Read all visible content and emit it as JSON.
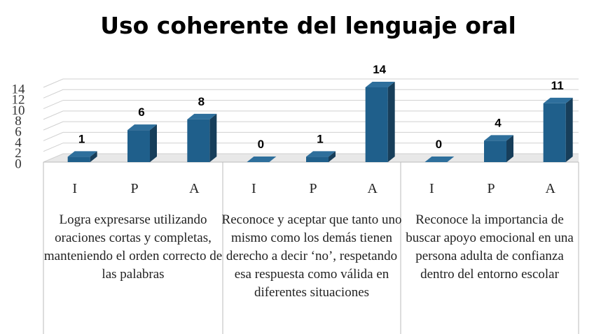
{
  "chart_data": {
    "type": "bar",
    "title": "Uso coherente del lenguaje oral",
    "groups": [
      {
        "name": "Logra expresarse utilizando oraciones cortas y completas, manteniendo el orden correcto de las palabras",
        "categories": [
          "I",
          "P",
          "A"
        ],
        "values": [
          1,
          6,
          8
        ]
      },
      {
        "name": "Reconoce y aceptar que tanto uno mismo como los demás tienen derecho a decir ‘no’, respetando esa respuesta como válida en diferentes situaciones",
        "categories": [
          "I",
          "P",
          "A"
        ],
        "values": [
          0,
          1,
          14
        ]
      },
      {
        "name": "Reconoce la importancia de buscar apoyo emocional en una persona adulta de confianza dentro del entorno escolar",
        "categories": [
          "I",
          "P",
          "A"
        ],
        "values": [
          0,
          4,
          11
        ]
      }
    ],
    "color": "#1f5f8b",
    "ylim": [
      0,
      14
    ],
    "yticks": [
      0,
      2,
      4,
      6,
      8,
      10,
      12,
      14
    ],
    "grid": true
  }
}
